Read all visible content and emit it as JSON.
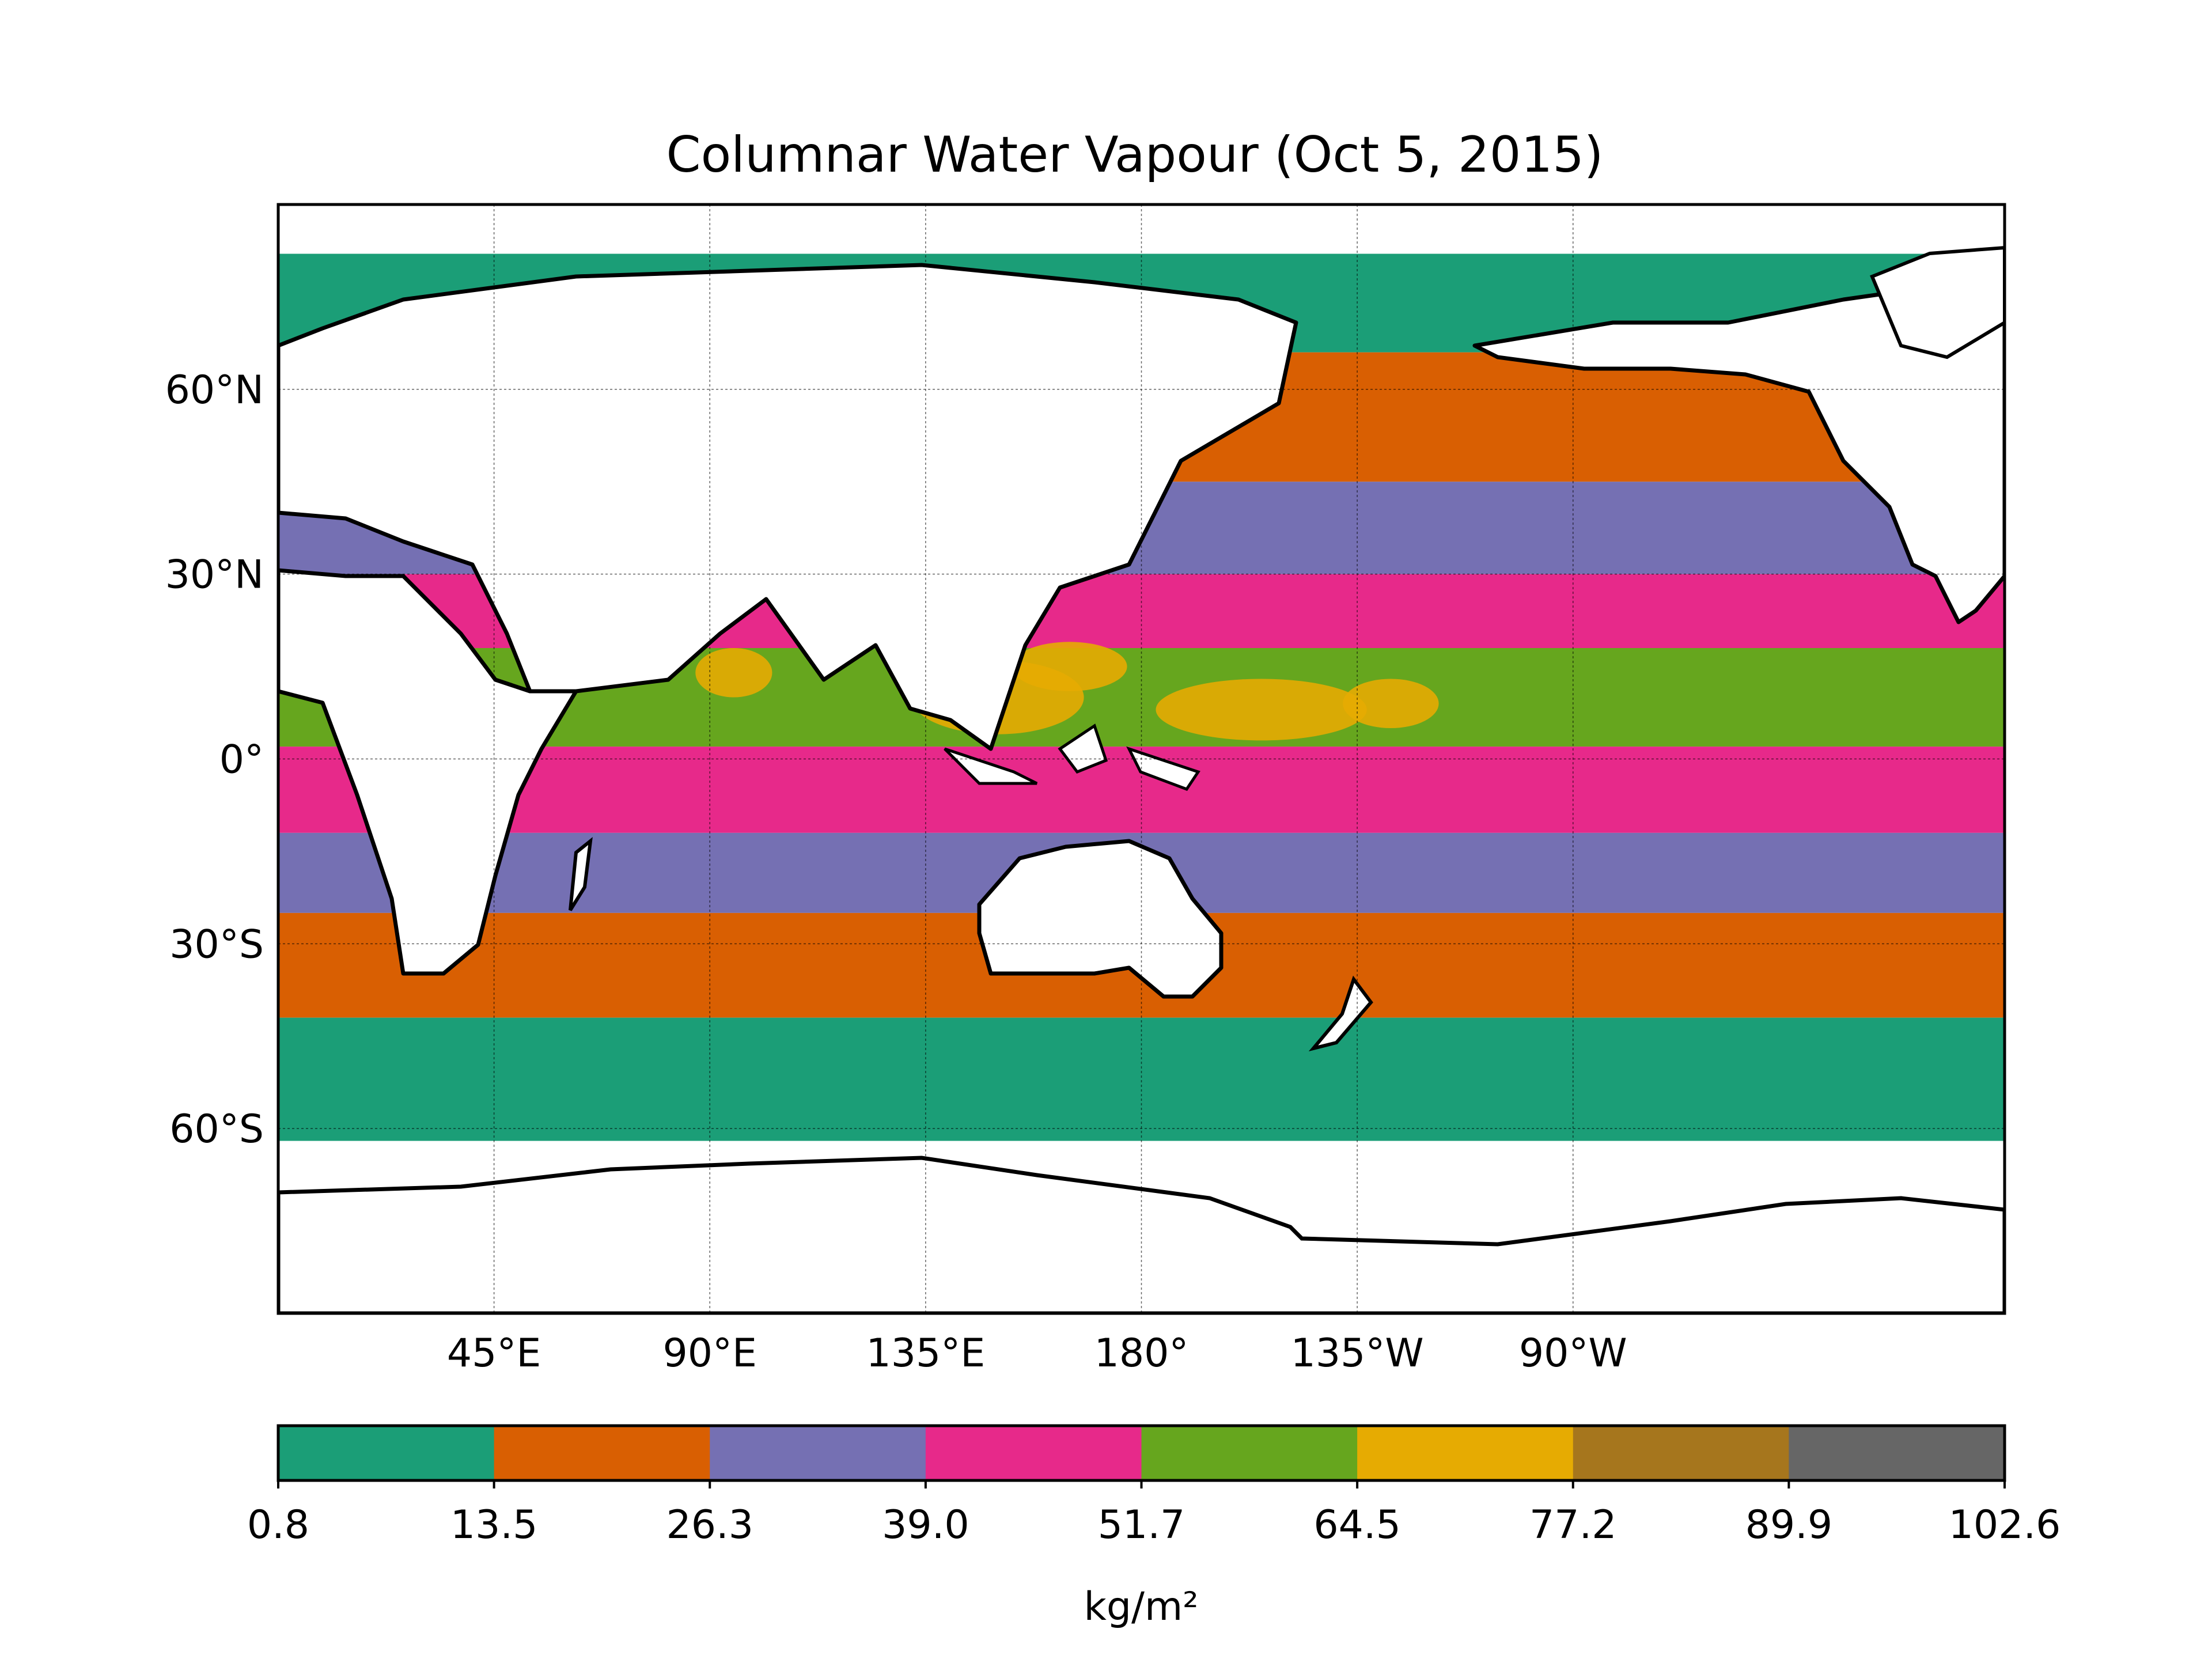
{
  "title": "Columnar Water Vapour (Oct 5, 2015)",
  "map": {
    "projection": "PlateCarree",
    "lon_range": [
      0,
      360
    ],
    "lat_range": [
      -90,
      90
    ],
    "land_color": "#ffffff",
    "coastline_color": "#000000",
    "gridlines": true,
    "lat_ticks": [
      {
        "value": 60,
        "label": "60°N"
      },
      {
        "value": 30,
        "label": "30°N"
      },
      {
        "value": 0,
        "label": "0°"
      },
      {
        "value": -30,
        "label": "30°S"
      },
      {
        "value": -60,
        "label": "60°S"
      }
    ],
    "lon_ticks": [
      {
        "value": 45,
        "label": "45°E"
      },
      {
        "value": 90,
        "label": "90°E"
      },
      {
        "value": 135,
        "label": "135°E"
      },
      {
        "value": 180,
        "label": "180°"
      },
      {
        "value": 225,
        "label": "135°W"
      },
      {
        "value": 270,
        "label": "90°W"
      }
    ]
  },
  "colorbar": {
    "label": "kg/m²",
    "orientation": "horizontal",
    "boundaries": [
      "0.8",
      "13.5",
      "26.3",
      "39.0",
      "51.7",
      "64.5",
      "77.2",
      "89.9",
      "102.6"
    ],
    "colors": [
      "#1b9e77",
      "#d95f02",
      "#7570b3",
      "#e7298a",
      "#66a61e",
      "#e6ab02",
      "#a6761d",
      "#666666"
    ]
  },
  "chart_data": {
    "type": "heatmap",
    "title": "Columnar Water Vapour (Oct 5, 2015)",
    "variable": "Columnar Water Vapour",
    "units": "kg/m²",
    "date": "Oct 5, 2015",
    "value_range": [
      0.8,
      102.6
    ],
    "levels": [
      0.8,
      13.5,
      26.3,
      39.0,
      51.7,
      64.5,
      77.2,
      89.9,
      102.6
    ],
    "xlim": [
      0,
      360
    ],
    "ylim": [
      -90,
      90
    ],
    "latitude_band_classes": [
      {
        "lat": [
          66,
          82
        ],
        "class": "0.8–13.5"
      },
      {
        "lat": [
          45,
          66
        ],
        "class": "13.5–26.3"
      },
      {
        "lat": [
          30,
          45
        ],
        "class": "26.3–39.0"
      },
      {
        "lat": [
          18,
          30
        ],
        "class": "39.0–51.7"
      },
      {
        "lat": [
          2,
          18
        ],
        "class": "51.7–64.5"
      },
      {
        "lat": [
          -12,
          2
        ],
        "class": "39.0–51.7"
      },
      {
        "lat": [
          -25,
          -12
        ],
        "class": "26.3–39.0"
      },
      {
        "lat": [
          -42,
          -25
        ],
        "class": "13.5–26.3"
      },
      {
        "lat": [
          -62,
          -42
        ],
        "class": "0.8–13.5"
      }
    ],
    "max_class_regions": [
      {
        "region": "western Pacific warm pool",
        "class": "64.5–77.2"
      },
      {
        "region": "eastern Pacific ITCZ",
        "class": "64.5–77.2"
      },
      {
        "region": "Bay of Bengal / South China Sea",
        "class": "64.5–77.2"
      }
    ]
  }
}
